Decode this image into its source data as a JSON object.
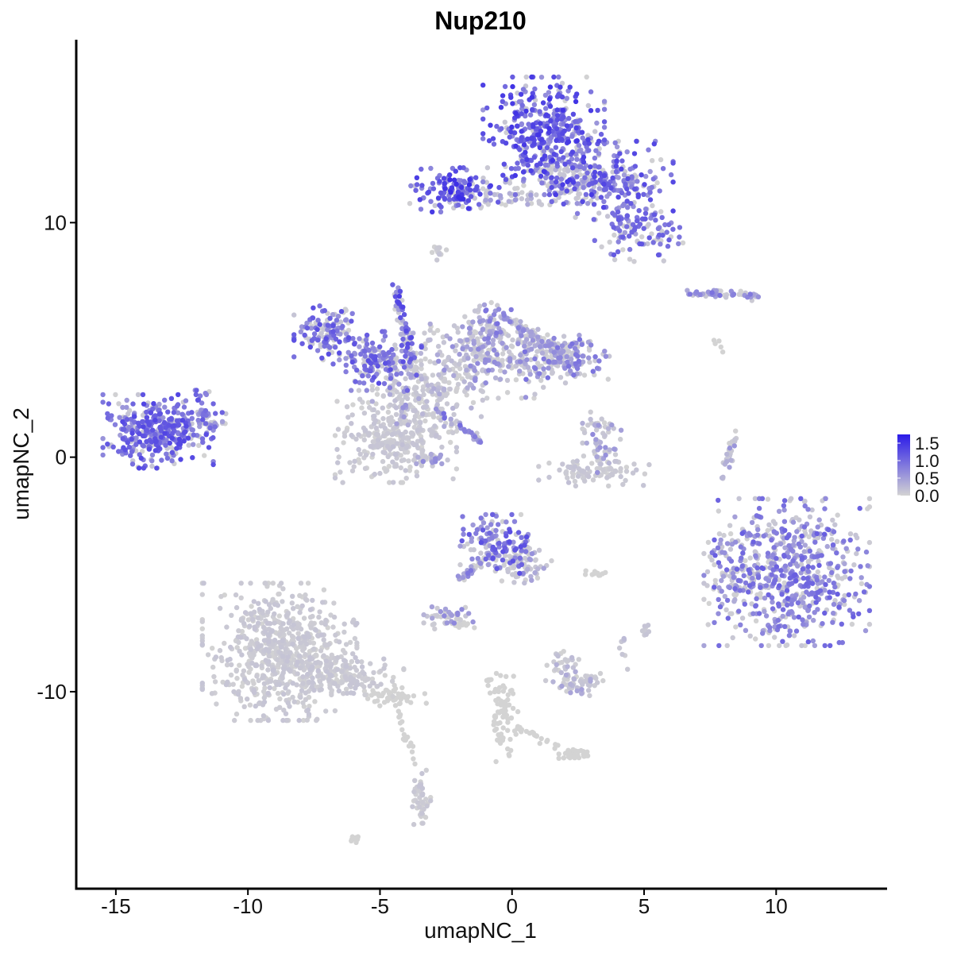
{
  "chart_data": {
    "type": "scatter",
    "title": "Nup210",
    "xlabel": "umapNC_1",
    "ylabel": "umapNC_2",
    "xlim": [
      -16.5,
      14.2
    ],
    "ylim": [
      -18.4,
      17.8
    ],
    "xticks": [
      -15,
      -10,
      -5,
      0,
      5,
      10
    ],
    "xtick_labels": [
      "-15",
      "-10",
      "-5",
      "0",
      "5",
      "10"
    ],
    "yticks": [
      -10,
      0,
      10
    ],
    "ytick_labels": [
      "-10",
      "0",
      "10"
    ],
    "grid": false,
    "legend_position": "right",
    "colorscale": {
      "low_color": "#d3d3d3",
      "high_color": "#2b1be8",
      "min": 0.0,
      "max": 1.75,
      "breaks": [
        0.0,
        0.5,
        1.0,
        1.5
      ],
      "break_labels": [
        "0.0",
        "0.5",
        "1.0",
        "1.5"
      ]
    },
    "clusters": [
      {
        "cx": 1.2,
        "cy": 13.7,
        "sx": 1.1,
        "sy": 1.2,
        "n": 420,
        "expr": 0.95
      },
      {
        "cx": 3.8,
        "cy": 11.8,
        "sx": 1.1,
        "sy": 0.8,
        "n": 220,
        "expr": 0.85
      },
      {
        "cx": 4.8,
        "cy": 9.6,
        "sx": 0.8,
        "sy": 0.6,
        "n": 110,
        "expr": 0.75
      },
      {
        "cx": -2.2,
        "cy": 11.4,
        "sx": 0.8,
        "sy": 0.45,
        "n": 130,
        "expr": 1.0
      },
      {
        "cx": -0.2,
        "cy": 11.1,
        "sx": 1.3,
        "sy": 0.3,
        "n": 70,
        "expr": 0.35
      },
      {
        "cx": 2.2,
        "cy": 11.8,
        "sx": 0.7,
        "sy": 0.6,
        "n": 80,
        "expr": 0.25
      },
      {
        "cx": -13.4,
        "cy": 1.1,
        "sx": 1.0,
        "sy": 0.75,
        "n": 360,
        "expr": 0.85
      },
      {
        "cx": -11.6,
        "cy": 1.6,
        "sx": 0.4,
        "sy": 0.6,
        "n": 40,
        "expr": 0.7
      },
      {
        "cx": -7.0,
        "cy": 5.3,
        "sx": 0.6,
        "sy": 0.55,
        "n": 130,
        "expr": 0.8
      },
      {
        "cx": -5.1,
        "cy": 4.1,
        "sx": 0.8,
        "sy": 0.6,
        "n": 150,
        "expr": 0.8
      },
      {
        "cx": -3.2,
        "cy": 3.2,
        "sx": 1.0,
        "sy": 1.0,
        "n": 220,
        "expr": 0.25
      },
      {
        "cx": -0.8,
        "cy": 4.4,
        "sx": 1.1,
        "sy": 0.9,
        "n": 260,
        "expr": 0.45
      },
      {
        "cx": 1.8,
        "cy": 4.2,
        "sx": 0.9,
        "sy": 0.55,
        "n": 160,
        "expr": 0.6
      },
      {
        "cx": -0.7,
        "cy": 5.8,
        "sx": 0.4,
        "sy": 0.5,
        "n": 40,
        "expr": 0.6
      },
      {
        "cx": -4.4,
        "cy": 0.8,
        "sx": 1.1,
        "sy": 0.9,
        "n": 300,
        "expr": 0.12
      },
      {
        "cx": -3.2,
        "cy": -0.1,
        "sx": 0.3,
        "sy": 0.15,
        "n": 30,
        "expr": 0.45
      },
      {
        "cx": 3.4,
        "cy": 0.6,
        "sx": 0.35,
        "sy": 0.6,
        "n": 50,
        "expr": 0.45
      },
      {
        "cx": 3.1,
        "cy": -0.6,
        "sx": 1.0,
        "sy": 0.3,
        "n": 90,
        "expr": 0.12
      },
      {
        "cx": 10.4,
        "cy": -4.9,
        "sx": 1.5,
        "sy": 1.5,
        "n": 650,
        "expr": 0.7
      },
      {
        "cx": 8.2,
        "cy": -5.2,
        "sx": 0.4,
        "sy": 0.8,
        "n": 40,
        "expr": 0.5
      },
      {
        "cx": -0.5,
        "cy": -3.7,
        "sx": 0.7,
        "sy": 0.6,
        "n": 150,
        "expr": 0.8
      },
      {
        "cx": 0.5,
        "cy": -4.6,
        "sx": 0.5,
        "sy": 0.5,
        "n": 60,
        "expr": 0.3
      },
      {
        "cx": -2.4,
        "cy": -6.8,
        "sx": 0.45,
        "sy": 0.25,
        "n": 45,
        "expr": 0.45
      },
      {
        "cx": 2.4,
        "cy": -9.6,
        "sx": 0.5,
        "sy": 0.3,
        "n": 60,
        "expr": 0.3
      },
      {
        "cx": 1.9,
        "cy": -8.9,
        "sx": 0.3,
        "sy": 0.3,
        "n": 25,
        "expr": 0.2
      },
      {
        "cx": -8.8,
        "cy": -8.3,
        "sx": 1.4,
        "sy": 1.4,
        "n": 650,
        "expr": 0.005
      },
      {
        "cx": -6.4,
        "cy": -9.3,
        "sx": 1.1,
        "sy": 0.45,
        "n": 160,
        "expr": 0.005
      },
      {
        "cx": -4.5,
        "cy": -10.2,
        "sx": 0.6,
        "sy": 0.2,
        "n": 50,
        "expr": 0.0
      },
      {
        "cx": -3.5,
        "cy": -14.6,
        "sx": 0.2,
        "sy": 0.6,
        "n": 50,
        "expr": 0.04
      },
      {
        "cx": 2.4,
        "cy": -12.7,
        "sx": 0.3,
        "sy": 0.15,
        "n": 25,
        "expr": 0.0
      },
      {
        "cx": -0.3,
        "cy": -11.1,
        "sx": 0.25,
        "sy": 0.9,
        "n": 60,
        "expr": 0.0
      },
      {
        "cx": -5.9,
        "cy": -16.3,
        "sx": 0.15,
        "sy": 0.08,
        "n": 10,
        "expr": 0.0
      },
      {
        "cx": 5.0,
        "cy": -7.3,
        "sx": 0.15,
        "sy": 0.15,
        "n": 10,
        "expr": 0.3
      },
      {
        "cx": -2.8,
        "cy": 8.7,
        "sx": 0.15,
        "sy": 0.2,
        "n": 12,
        "expr": 0.1
      },
      {
        "cx": -1.8,
        "cy": -7.2,
        "sx": 0.25,
        "sy": 0.08,
        "n": 10,
        "expr": 0.0
      },
      {
        "cx": 3.0,
        "cy": -5.0,
        "sx": 0.4,
        "sy": 0.08,
        "n": 12,
        "expr": 0.0
      },
      {
        "cx": 4.2,
        "cy": -8.0,
        "sx": 0.1,
        "sy": 0.5,
        "n": 8,
        "expr": 0.2
      }
    ],
    "segments": [
      {
        "x1": -0.3,
        "y1": 6.0,
        "x2": 2.3,
        "y2": 4.0,
        "n": 70,
        "expr": 0.5
      },
      {
        "x1": -4.4,
        "y1": 7.4,
        "x2": -3.8,
        "y2": 4.2,
        "n": 40,
        "expr": 0.9
      },
      {
        "x1": -4.5,
        "y1": 6.9,
        "x2": -3.7,
        "y2": 3.6,
        "n": 25,
        "expr": 0.5
      },
      {
        "x1": -2.8,
        "y1": 2.0,
        "x2": -1.2,
        "y2": 0.7,
        "n": 35,
        "expr": 0.65
      },
      {
        "x1": -3.6,
        "y1": 4.0,
        "x2": -4.4,
        "y2": 1.0,
        "n": 25,
        "expr": 0.4
      },
      {
        "x1": 6.6,
        "y1": 7.0,
        "x2": 9.4,
        "y2": 6.9,
        "n": 55,
        "expr": 0.6
      },
      {
        "x1": 8.5,
        "y1": 1.2,
        "x2": 8.0,
        "y2": -1.0,
        "n": 25,
        "expr": 0.4
      },
      {
        "x1": -2.0,
        "y1": -5.2,
        "x2": -0.8,
        "y2": -4.0,
        "n": 30,
        "expr": 0.6
      },
      {
        "x1": -0.9,
        "y1": -9.4,
        "x2": -0.1,
        "y2": -11.4,
        "n": 25,
        "expr": 0.0
      },
      {
        "x1": 0.0,
        "y1": -11.5,
        "x2": 2.5,
        "y2": -12.7,
        "n": 30,
        "expr": 0.0
      },
      {
        "x1": -4.3,
        "y1": -10.6,
        "x2": -3.8,
        "y2": -13.0,
        "n": 20,
        "expr": 0.0
      },
      {
        "x1": -11.6,
        "y1": 1.4,
        "x2": -10.9,
        "y2": 1.4,
        "n": 12,
        "expr": 0.5
      },
      {
        "x1": 7.6,
        "y1": 4.9,
        "x2": 7.9,
        "y2": 4.6,
        "n": 5,
        "expr": 0.0
      },
      {
        "x1": 3.0,
        "y1": 1.8,
        "x2": 3.5,
        "y2": 0.9,
        "n": 10,
        "expr": 0.2
      }
    ]
  }
}
